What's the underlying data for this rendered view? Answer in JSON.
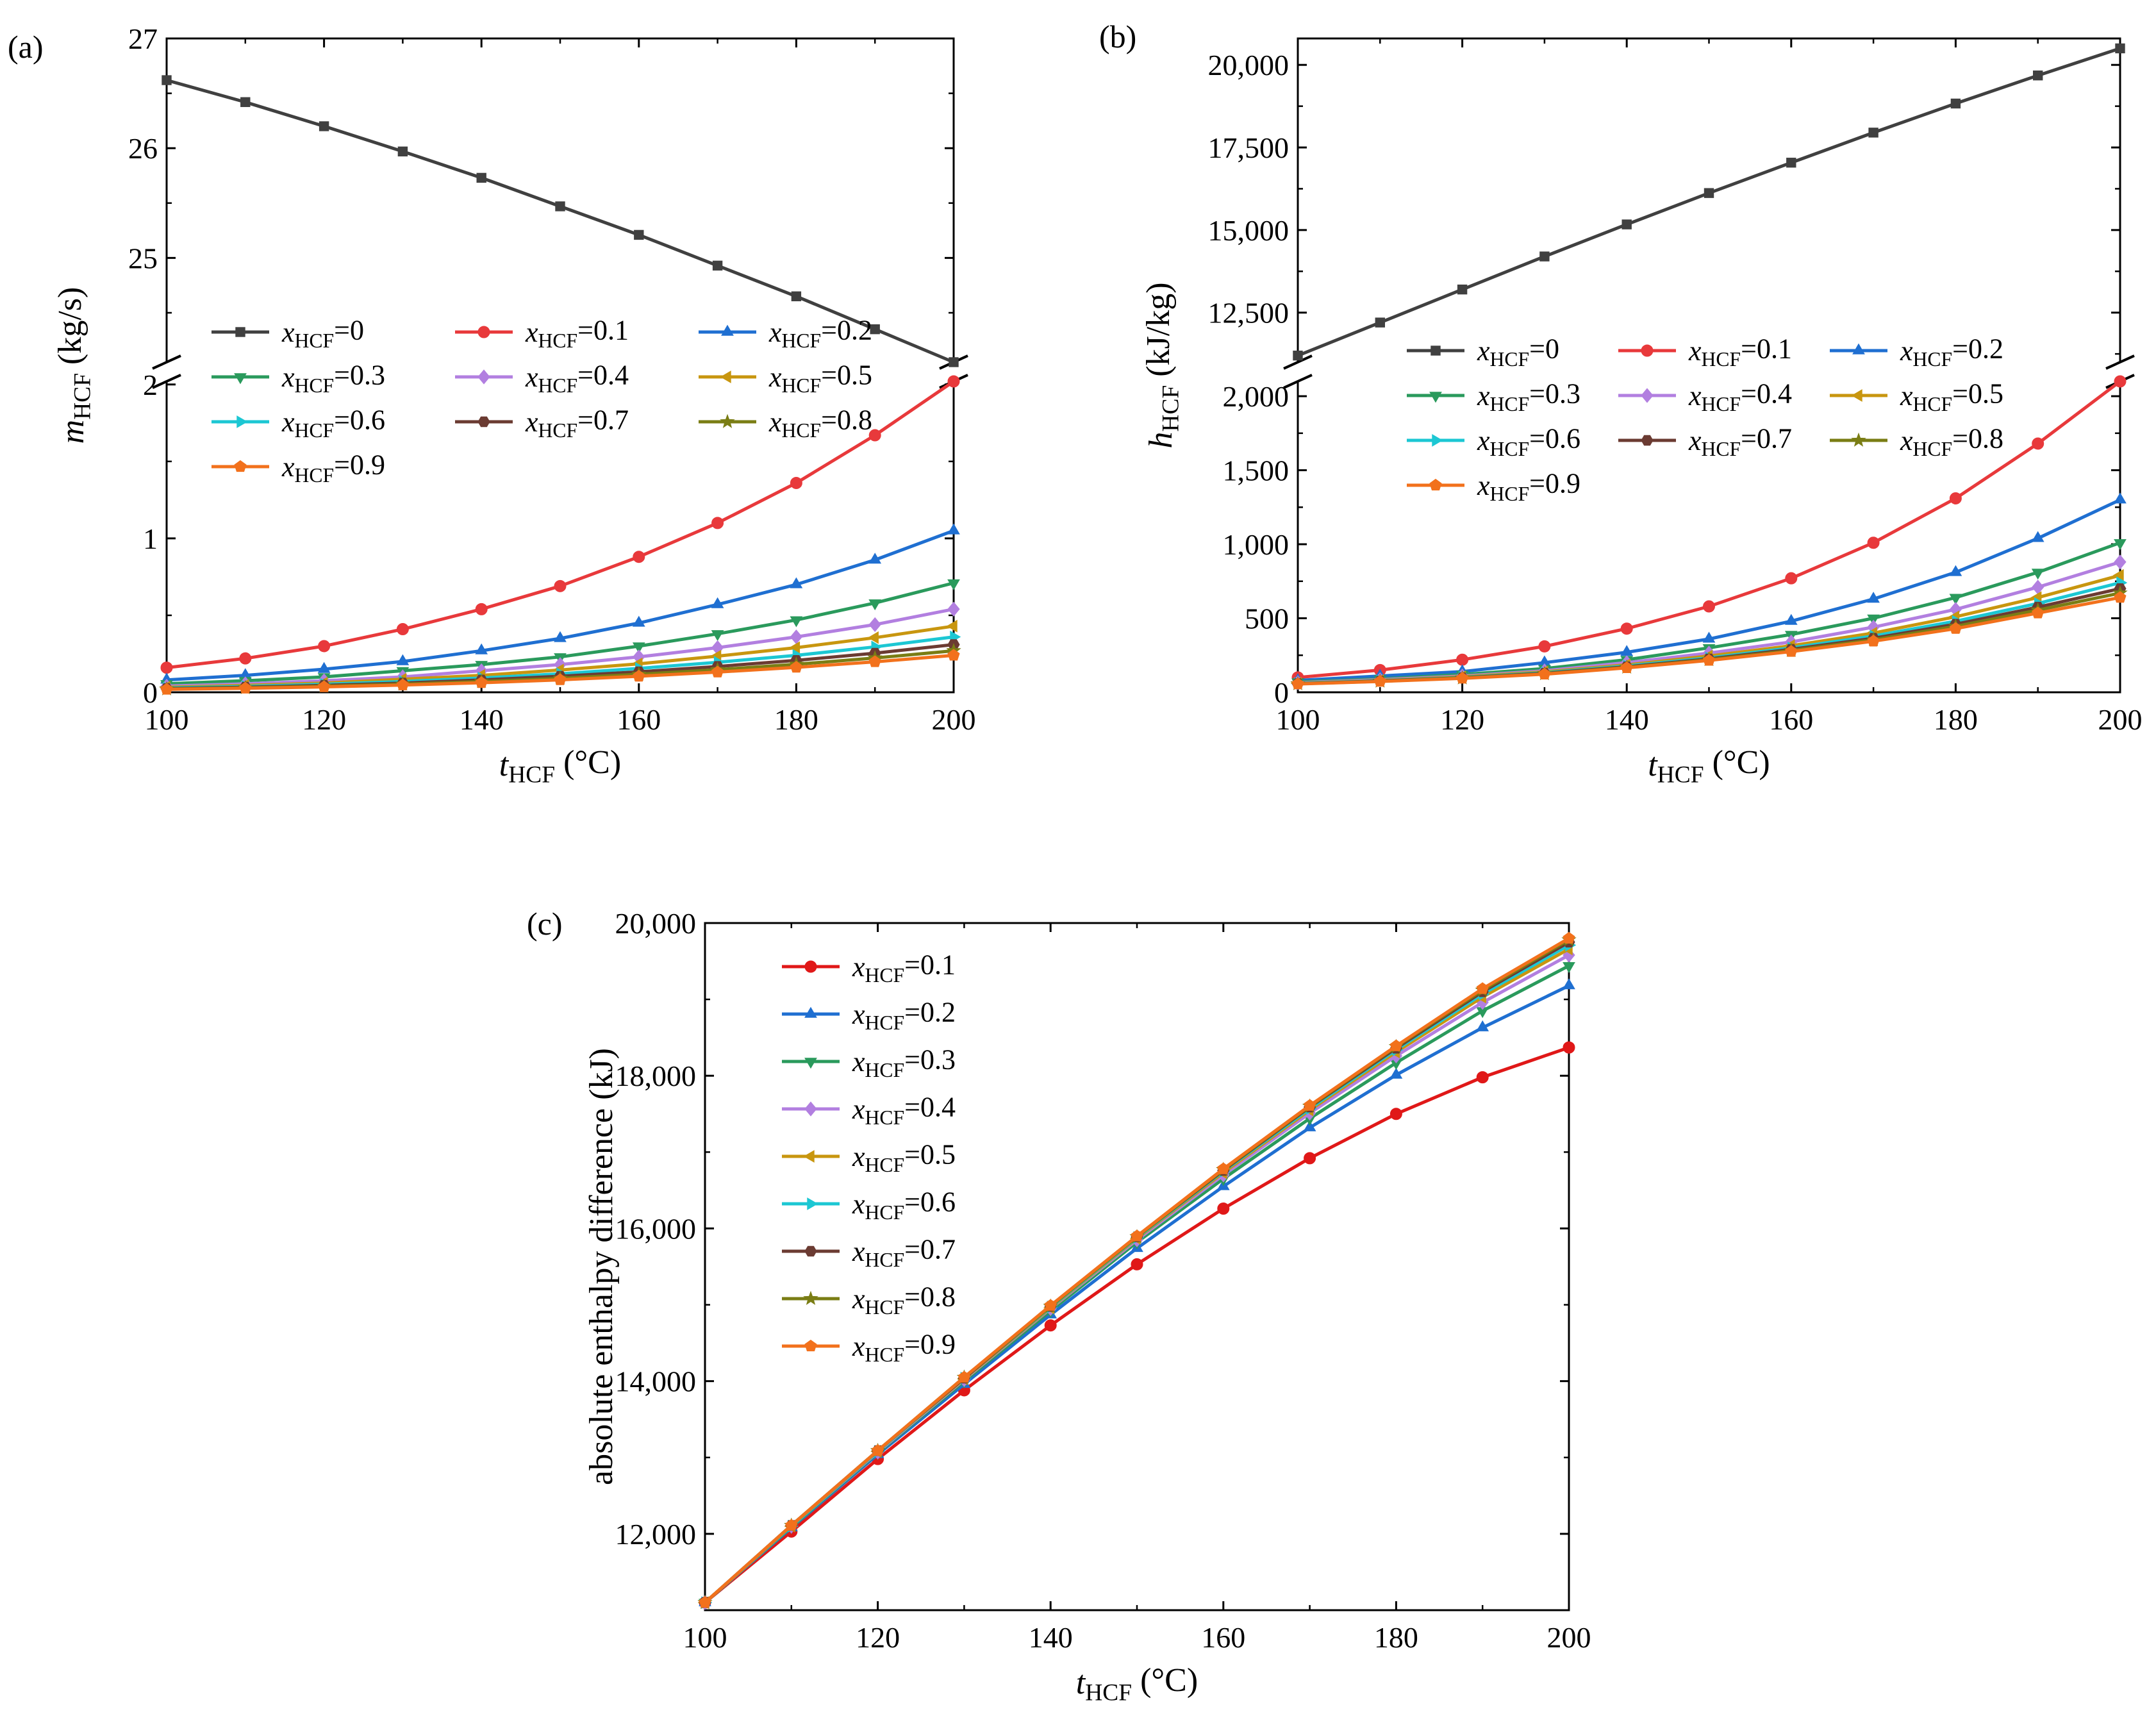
{
  "chart_data": [
    {
      "panel_label": "(a)",
      "type": "line",
      "xlabel": {
        "main": "t",
        "sub": "HCF",
        "unit": " (°C)"
      },
      "ylabel": {
        "main": "m",
        "sub": "HCF",
        "unit": " (kg/s)"
      },
      "xlim": [
        100,
        200
      ],
      "x_ticks": [
        "100",
        "120",
        "140",
        "160",
        "180",
        "200"
      ],
      "broken_axis": true,
      "upper_ylim": [
        24.05,
        27
      ],
      "upper_y_ticks": [
        "25",
        "26",
        "27"
      ],
      "lower_ylim": [
        0,
        2.02
      ],
      "lower_y_ticks": [
        "0",
        "1",
        "2"
      ],
      "x": [
        100,
        110,
        120,
        130,
        140,
        150,
        160,
        170,
        180,
        190,
        200
      ],
      "series": [
        {
          "name": "0",
          "values": [
            26.62,
            26.42,
            26.2,
            25.97,
            25.73,
            25.47,
            25.21,
            24.93,
            24.65,
            24.35,
            24.05
          ]
        },
        {
          "name": "0.1",
          "values": [
            0.16,
            0.22,
            0.3,
            0.41,
            0.54,
            0.69,
            0.88,
            1.1,
            1.36,
            1.67,
            2.02
          ]
        },
        {
          "name": "0.2",
          "values": [
            0.08,
            0.11,
            0.15,
            0.2,
            0.27,
            0.35,
            0.45,
            0.57,
            0.7,
            0.86,
            1.05
          ]
        },
        {
          "name": "0.3",
          "values": [
            0.055,
            0.075,
            0.1,
            0.14,
            0.18,
            0.23,
            0.3,
            0.38,
            0.47,
            0.58,
            0.71
          ]
        },
        {
          "name": "0.4",
          "values": [
            0.04,
            0.055,
            0.075,
            0.1,
            0.14,
            0.18,
            0.23,
            0.29,
            0.36,
            0.44,
            0.54
          ]
        },
        {
          "name": "0.5",
          "values": [
            0.033,
            0.045,
            0.06,
            0.085,
            0.11,
            0.145,
            0.185,
            0.235,
            0.29,
            0.355,
            0.43
          ]
        },
        {
          "name": "0.6",
          "values": [
            0.028,
            0.038,
            0.052,
            0.07,
            0.093,
            0.12,
            0.155,
            0.195,
            0.24,
            0.295,
            0.36
          ]
        },
        {
          "name": "0.7",
          "values": [
            0.024,
            0.033,
            0.045,
            0.06,
            0.08,
            0.104,
            0.133,
            0.168,
            0.207,
            0.254,
            0.31
          ]
        },
        {
          "name": "0.8",
          "values": [
            0.021,
            0.029,
            0.039,
            0.053,
            0.07,
            0.091,
            0.117,
            0.147,
            0.182,
            0.223,
            0.27
          ]
        },
        {
          "name": "0.9",
          "values": [
            0.019,
            0.026,
            0.035,
            0.047,
            0.062,
            0.081,
            0.104,
            0.131,
            0.162,
            0.198,
            0.24
          ]
        }
      ],
      "legend_placement": "center-left"
    },
    {
      "panel_label": "(b)",
      "type": "line",
      "xlabel": {
        "main": "t",
        "sub": "HCF",
        "unit": " (°C)"
      },
      "ylabel": {
        "main": "h",
        "sub": "HCF",
        "unit": " (kJ/kg)"
      },
      "xlim": [
        100,
        200
      ],
      "x_ticks": [
        "100",
        "120",
        "140",
        "160",
        "180",
        "200"
      ],
      "broken_axis": true,
      "upper_ylim": [
        11000,
        20800
      ],
      "upper_y_ticks": [
        "12,500",
        "15,000",
        "17,500",
        "20,000"
      ],
      "lower_ylim": [
        0,
        2100
      ],
      "lower_y_ticks": [
        "0",
        "500",
        "1,000",
        "1,500",
        "2,000"
      ],
      "x": [
        100,
        110,
        120,
        130,
        140,
        150,
        160,
        170,
        180,
        190,
        200
      ],
      "series": [
        {
          "name": "0",
          "values": [
            11200,
            12200,
            13200,
            14200,
            15170,
            16120,
            17040,
            17950,
            18830,
            19680,
            20500
          ]
        },
        {
          "name": "0.1",
          "values": [
            100,
            150,
            220,
            310,
            430,
            580,
            770,
            1010,
            1310,
            1680,
            2100
          ]
        },
        {
          "name": "0.2",
          "values": [
            80,
            110,
            140,
            200,
            270,
            360,
            480,
            630,
            810,
            1040,
            1300
          ]
        },
        {
          "name": "0.3",
          "values": [
            70,
            90,
            120,
            160,
            220,
            300,
            390,
            500,
            640,
            810,
            1010
          ]
        },
        {
          "name": "0.4",
          "values": [
            65,
            85,
            110,
            145,
            200,
            265,
            340,
            440,
            560,
            710,
            880
          ]
        },
        {
          "name": "0.5",
          "values": [
            62,
            80,
            105,
            138,
            185,
            245,
            315,
            400,
            510,
            640,
            790
          ]
        },
        {
          "name": "0.6",
          "values": [
            60,
            78,
            100,
            132,
            178,
            232,
            300,
            380,
            480,
            600,
            740
          ]
        },
        {
          "name": "0.7",
          "values": [
            58,
            76,
            98,
            128,
            172,
            225,
            290,
            365,
            460,
            575,
            700
          ]
        },
        {
          "name": "0.8",
          "values": [
            57,
            74,
            96,
            125,
            168,
            220,
            282,
            355,
            445,
            555,
            670
          ]
        },
        {
          "name": "0.9",
          "values": [
            56,
            73,
            94,
            122,
            165,
            215,
            275,
            345,
            430,
            535,
            640
          ]
        }
      ],
      "legend_placement": "center-left"
    },
    {
      "panel_label": "(c)",
      "type": "line",
      "xlabel": {
        "main": "t",
        "sub": "HCF",
        "unit": " (°C)"
      },
      "ylabel": {
        "text": "absolute enthalpy difference (kJ)"
      },
      "xlim": [
        100,
        200
      ],
      "x_ticks": [
        "100",
        "120",
        "140",
        "160",
        "180",
        "200"
      ],
      "ylim": [
        11000,
        20000
      ],
      "y_ticks": [
        "12,000",
        "14,000",
        "16,000",
        "18,000",
        "20,000"
      ],
      "x": [
        100,
        110,
        120,
        130,
        140,
        150,
        160,
        170,
        180,
        190,
        200
      ],
      "series": [
        {
          "name": "0.1",
          "values": [
            11100,
            12030,
            12980,
            13880,
            14730,
            15530,
            16260,
            16920,
            17500,
            17980,
            18370
          ]
        },
        {
          "name": "0.2",
          "values": [
            11100,
            12080,
            13040,
            13960,
            14870,
            15740,
            16550,
            17320,
            18010,
            18630,
            19180
          ]
        },
        {
          "name": "0.3",
          "values": [
            11100,
            12090,
            13060,
            14000,
            14920,
            15820,
            16650,
            17440,
            18170,
            18850,
            19440
          ]
        },
        {
          "name": "0.4",
          "values": [
            11100,
            12100,
            13070,
            14020,
            14950,
            15850,
            16700,
            17510,
            18260,
            18960,
            19580
          ]
        },
        {
          "name": "0.5",
          "values": [
            11100,
            12100,
            13080,
            14030,
            14960,
            15870,
            16730,
            17550,
            18310,
            19030,
            19660
          ]
        },
        {
          "name": "0.6",
          "values": [
            11100,
            12100,
            13080,
            14040,
            14970,
            15880,
            16750,
            17570,
            18340,
            19070,
            19710
          ]
        },
        {
          "name": "0.7",
          "values": [
            11100,
            12110,
            13090,
            14040,
            14980,
            15890,
            16760,
            17590,
            18360,
            19100,
            19750
          ]
        },
        {
          "name": "0.8",
          "values": [
            11100,
            12110,
            13090,
            14050,
            14980,
            15890,
            16770,
            17600,
            18380,
            19120,
            19780
          ]
        },
        {
          "name": "0.9",
          "values": [
            11100,
            12110,
            13090,
            14050,
            14990,
            15900,
            16780,
            17610,
            18390,
            19140,
            19800
          ]
        }
      ],
      "legend_placement": "top-left"
    }
  ],
  "legend_prefix": {
    "main": "x",
    "sub": "HCF"
  },
  "series_colors": {
    "0": "#404040",
    "0.1": "#e8393b",
    "0.2": "#1f6fd1",
    "0.3": "#2a9a5c",
    "0.4": "#b27fe0",
    "0.5": "#c8960f",
    "0.6": "#1cc7d3",
    "0.7": "#6b3b32",
    "0.8": "#7a7d14",
    "0.9": "#f2711c"
  },
  "panel_c_color_override": {
    "0.1": "#e01818"
  },
  "series_markers": {
    "0": "square",
    "0.1": "circle",
    "0.2": "triangle-up",
    "0.3": "triangle-down",
    "0.4": "diamond",
    "0.5": "triangle-left",
    "0.6": "triangle-right",
    "0.7": "hexagon",
    "0.8": "star",
    "0.9": "pentagon"
  }
}
